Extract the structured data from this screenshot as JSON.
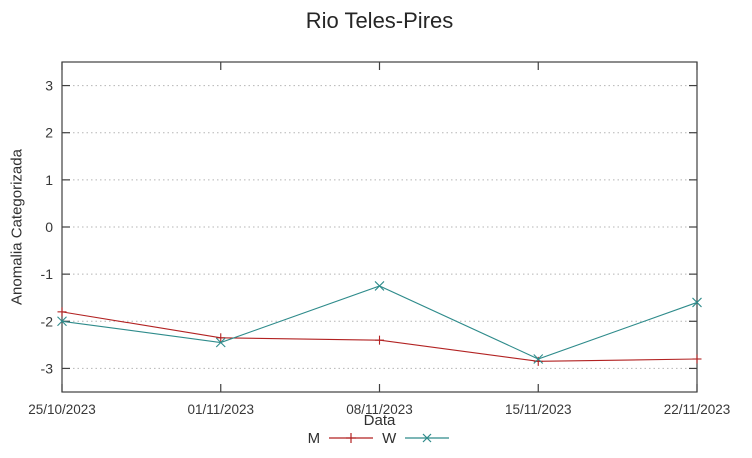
{
  "chart_data": {
    "type": "line",
    "title": "Rio Teles-Pires",
    "xlabel": "Data",
    "ylabel": "Anomalia Categorizada",
    "categories": [
      "25/10/2023",
      "01/11/2023",
      "08/11/2023",
      "15/11/2023",
      "22/11/2023"
    ],
    "series": [
      {
        "name": "M",
        "marker": "plus",
        "color": "#b22222",
        "values": [
          -1.8,
          -2.35,
          -2.4,
          -2.85,
          -2.8
        ]
      },
      {
        "name": "W",
        "marker": "cross",
        "color": "#2e8b8b",
        "values": [
          -2.0,
          -2.45,
          -1.25,
          -2.8,
          -1.6
        ]
      }
    ],
    "ylim": [
      -3.5,
      3.5
    ],
    "yticks": [
      -3,
      -2,
      -1,
      0,
      1,
      2,
      3
    ],
    "grid": "horizontal-dotted",
    "legend_position": "bottom-center",
    "colors": {
      "grid": "#b5b5b5",
      "border": "#404040",
      "text": "#383838"
    }
  }
}
